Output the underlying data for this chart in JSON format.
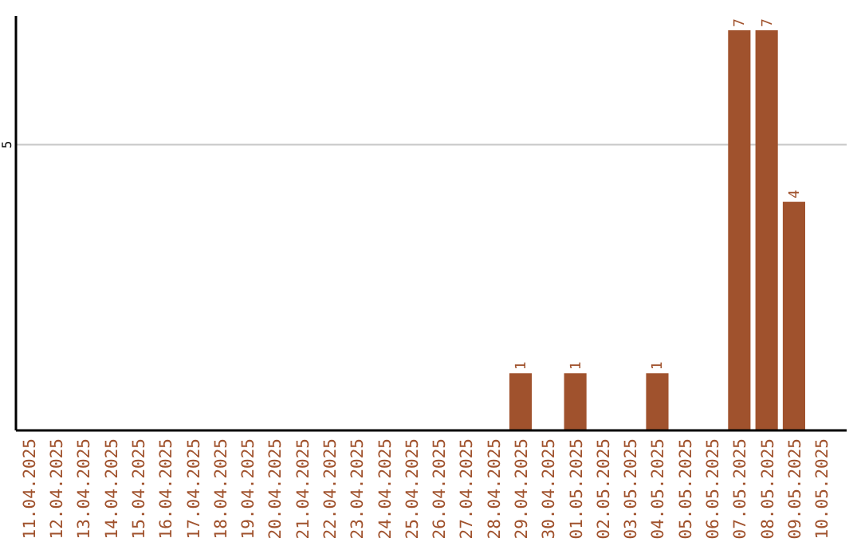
{
  "chart_data": {
    "type": "bar",
    "categories": [
      "11.04.2025",
      "12.04.2025",
      "13.04.2025",
      "14.04.2025",
      "15.04.2025",
      "16.04.2025",
      "17.04.2025",
      "18.04.2025",
      "19.04.2025",
      "20.04.2025",
      "21.04.2025",
      "22.04.2025",
      "23.04.2025",
      "24.04.2025",
      "25.04.2025",
      "26.04.2025",
      "27.04.2025",
      "28.04.2025",
      "29.04.2025",
      "30.04.2025",
      "01.05.2025",
      "02.05.2025",
      "03.05.2025",
      "04.05.2025",
      "05.05.2025",
      "06.05.2025",
      "07.05.2025",
      "08.05.2025",
      "09.05.2025",
      "10.05.2025"
    ],
    "values": [
      null,
      null,
      null,
      null,
      null,
      null,
      null,
      null,
      null,
      null,
      null,
      null,
      null,
      null,
      null,
      null,
      null,
      null,
      1,
      null,
      1,
      null,
      null,
      1,
      null,
      null,
      7,
      7,
      4,
      null
    ],
    "data_labels": true,
    "color": "#a0522d",
    "ylim": [
      0,
      7.25
    ],
    "yticks": [
      5
    ],
    "grid": "y"
  }
}
